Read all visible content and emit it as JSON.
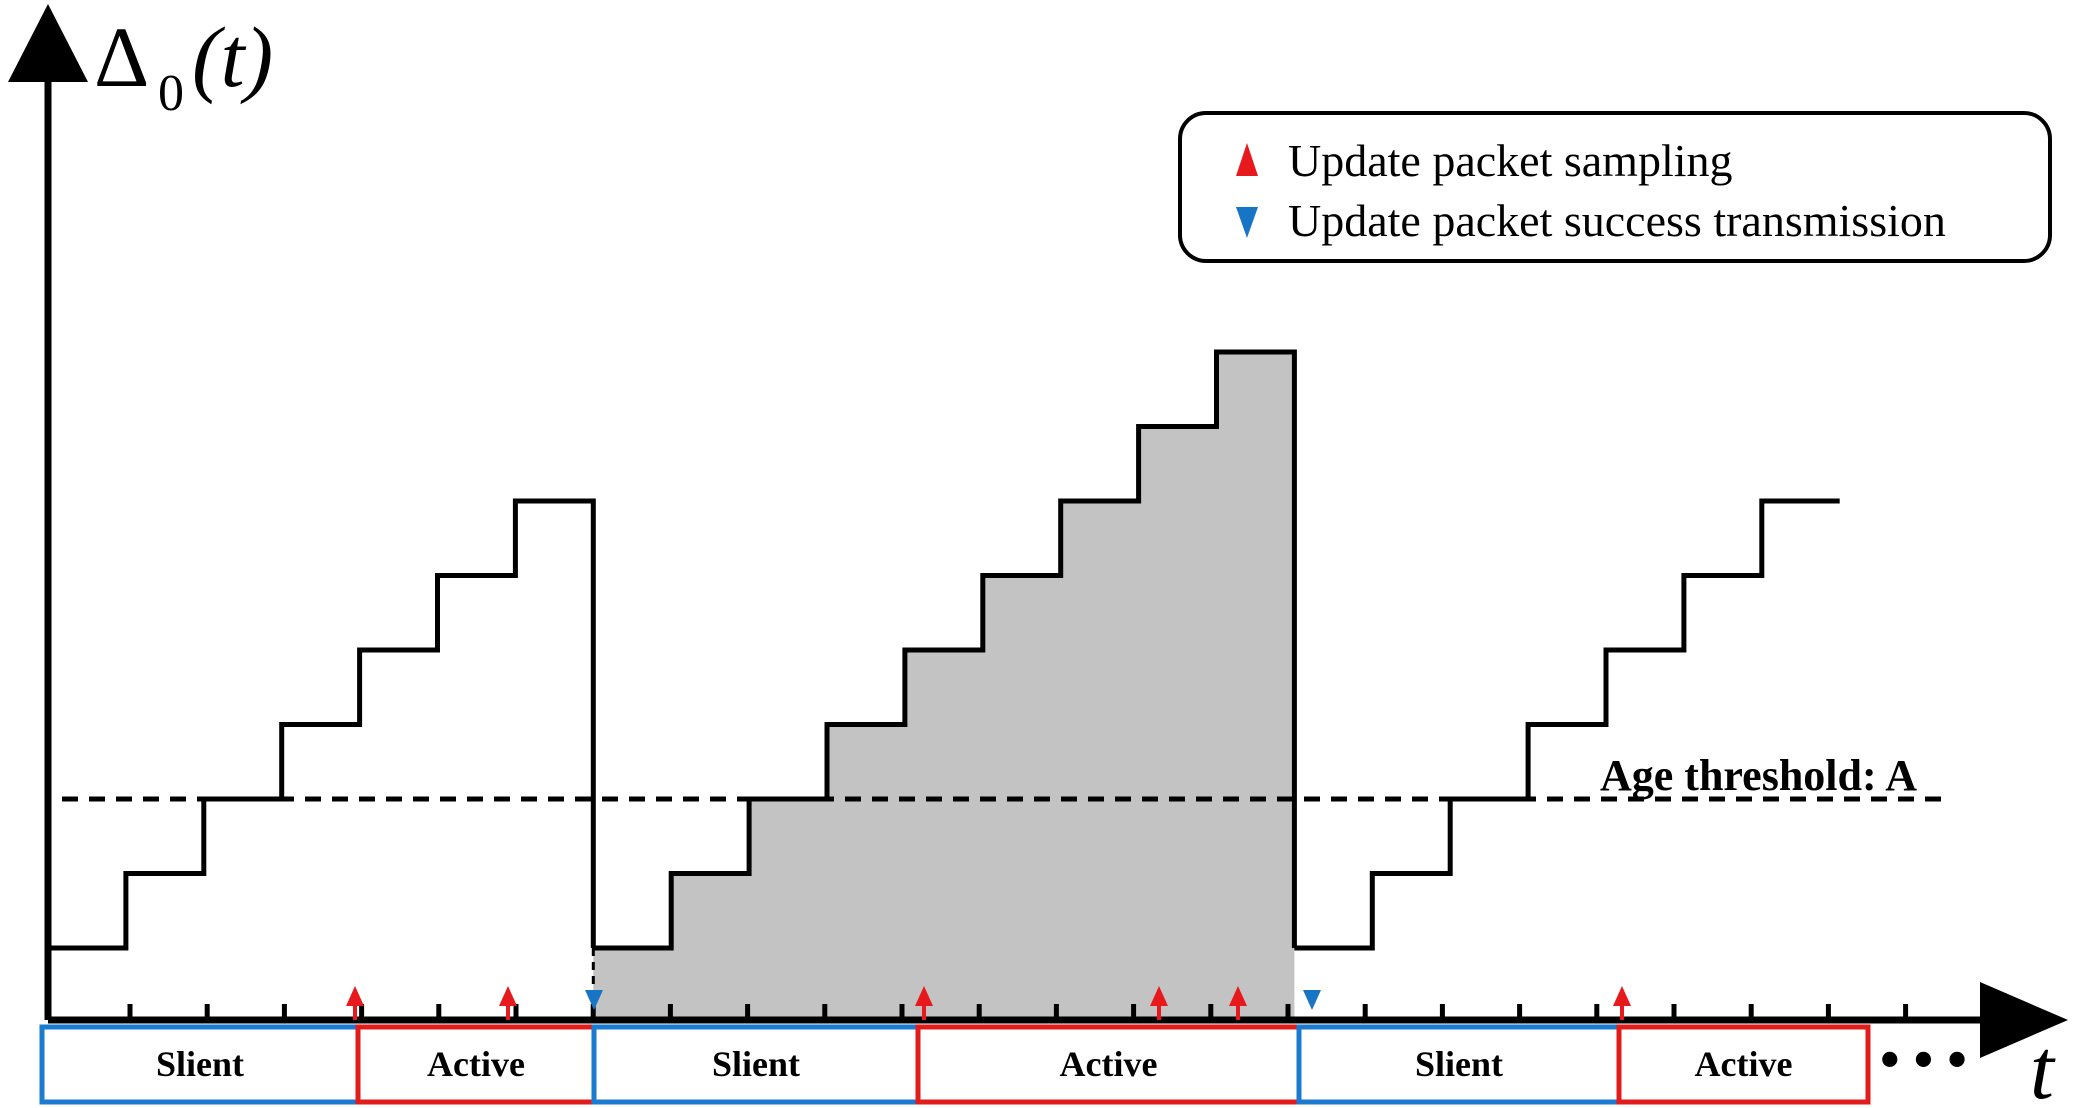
{
  "y_axis": {
    "symbol": "Δ",
    "subscript": "0",
    "argument": "(t)"
  },
  "x_axis": {
    "label": "t"
  },
  "legend": {
    "items": [
      {
        "marker": "up-triangle",
        "color": "#e8191c",
        "label": "Update packet sampling"
      },
      {
        "marker": "down-triangle",
        "color": "#1874c4",
        "label": "Update packet success transmission"
      }
    ]
  },
  "threshold": {
    "label": "Age threshold: A",
    "level_steps": 3
  },
  "phases": [
    {
      "label": "Slient",
      "color": "#1b7bd0",
      "start_slot": 0,
      "end_slot": 4
    },
    {
      "label": "Active",
      "color": "#e21b1b",
      "start_slot": 4,
      "end_slot": 7
    },
    {
      "label": "Slient",
      "color": "#1b7bd0",
      "start_slot": 7,
      "end_slot": 11
    },
    {
      "label": "Active",
      "color": "#e21b1b",
      "start_slot": 11,
      "end_slot": 16
    },
    {
      "label": "Slient",
      "color": "#1b7bd0",
      "start_slot": 16,
      "end_slot": 20
    },
    {
      "label": "Active",
      "color": "#e21b1b",
      "start_slot": 20,
      "end_slot": 23
    }
  ],
  "continuation": "• • •",
  "sampling_slots": [
    4,
    6,
    11,
    14,
    15,
    20
  ],
  "success_slots": [
    7,
    16
  ],
  "shaded_interval": [
    7,
    16
  ],
  "total_slots": 24,
  "age_steps": [
    {
      "start_slot": 0,
      "values": [
        1,
        2,
        3,
        4,
        5,
        6,
        7
      ]
    },
    {
      "start_slot": 7,
      "values": [
        1,
        2,
        3,
        4,
        5,
        6,
        7,
        8,
        9
      ]
    },
    {
      "start_slot": 16,
      "values": [
        1,
        2,
        3,
        4,
        5,
        6,
        7
      ]
    }
  ],
  "colors": {
    "sampling": "#e8191c",
    "success": "#1874c4",
    "shade": "#c3c3c3",
    "line": "#000000"
  }
}
